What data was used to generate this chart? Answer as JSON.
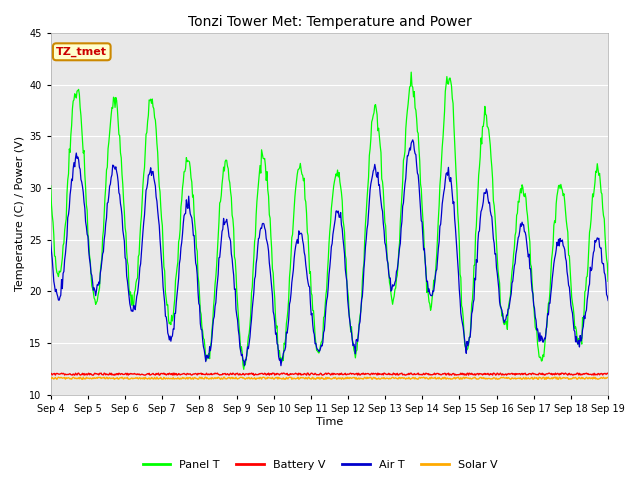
{
  "title": "Tonzi Tower Met: Temperature and Power",
  "xlabel": "Time",
  "ylabel": "Temperature (C) / Power (V)",
  "ylim": [
    10,
    45
  ],
  "yticks": [
    10,
    15,
    20,
    25,
    30,
    35,
    40,
    45
  ],
  "xtick_labels": [
    "Sep 4",
    "Sep 5",
    "Sep 6",
    "Sep 7",
    "Sep 8",
    "Sep 9",
    "Sep 10",
    "Sep 11",
    "Sep 12",
    "Sep 13",
    "Sep 14",
    "Sep 15",
    "Sep 16",
    "Sep 17",
    "Sep 18",
    "Sep 19"
  ],
  "panel_color": "#00ff00",
  "air_color": "#0000cc",
  "battery_color": "#ff0000",
  "solar_color": "#ffaa00",
  "fig_bg": "#ffffff",
  "plot_bg": "#e8e8e8",
  "grid_color": "#ffffff",
  "annotation_text": "TZ_tmet",
  "annotation_bg": "#ffffcc",
  "annotation_border": "#cc8800",
  "annotation_text_color": "#cc0000",
  "legend_labels": [
    "Panel T",
    "Battery V",
    "Air T",
    "Solar V"
  ],
  "legend_colors": [
    "#00ff00",
    "#ff0000",
    "#0000cc",
    "#ffaa00"
  ],
  "battery_level": 12.0,
  "solar_level": 11.6,
  "title_fontsize": 10,
  "axis_fontsize": 8,
  "tick_fontsize": 7
}
